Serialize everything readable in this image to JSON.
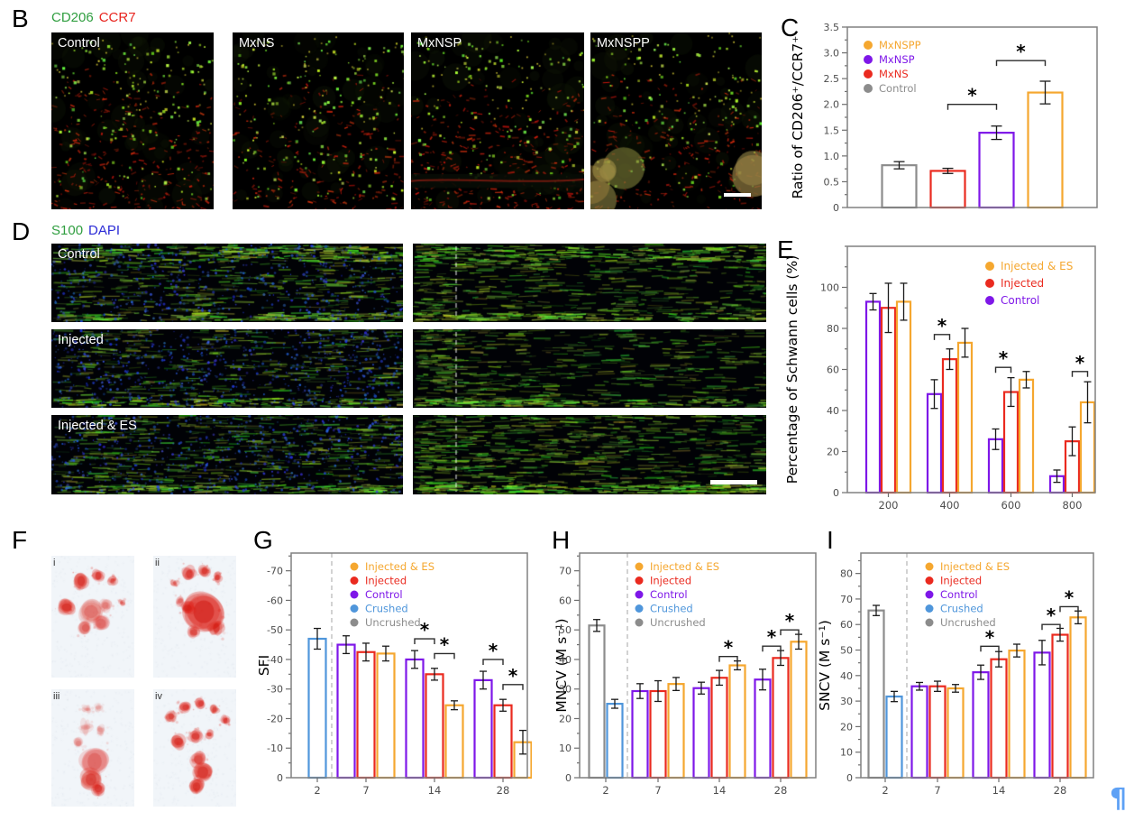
{
  "colors": {
    "orange": "#F5A72F",
    "red": "#EA2A1F",
    "purple": "#7E17E8",
    "blue": "#4F96DB",
    "gray": "#8C8C8C",
    "marker_green": "#2F9E3F",
    "marker_red": "#E8251F",
    "marker_blue": "#2B2BD6",
    "pilcrow_blue": "#5EA1F5"
  },
  "icons": {
    "pilcrow": "¶"
  },
  "panels": {
    "b": {
      "letter": "B",
      "markers": {
        "first": "CD206",
        "second": "CCR7"
      },
      "images": [
        {
          "label": "Control"
        },
        {
          "label": "MxNS"
        },
        {
          "label": "MxNSP"
        },
        {
          "label": "MxNSPP"
        }
      ]
    },
    "c": {
      "letter": "C"
    },
    "d": {
      "letter": "D",
      "markers": {
        "first": "S100",
        "second": "DAPI"
      },
      "rows": [
        {
          "label": "Control"
        },
        {
          "label": "Injected"
        },
        {
          "label": "Injected & ES"
        }
      ]
    },
    "e": {
      "letter": "E"
    },
    "f": {
      "letter": "F",
      "prints": [
        {
          "label": "i"
        },
        {
          "label": "ii"
        },
        {
          "label": "iii"
        },
        {
          "label": "iv"
        }
      ]
    },
    "g": {
      "letter": "G"
    },
    "h": {
      "letter": "H"
    },
    "i": {
      "letter": "I"
    }
  },
  "chart_data": [
    {
      "id": "c",
      "type": "bar",
      "ylabel": "Ratio of CD206⁺/CCR7⁺",
      "ylim": [
        0,
        3.5
      ],
      "ytick_major": 0.5,
      "ytick_minor": 0.25,
      "ytick_label_max": 3.5,
      "ytick_format": "decimal1",
      "negative_axis": false,
      "show_xlabels": false,
      "groups": [
        {
          "label": "",
          "bars": [
            {
              "series": "Control",
              "value": 0.82,
              "err": 0.07,
              "color": "#8C8C8C"
            }
          ]
        },
        {
          "label": "",
          "bars": [
            {
              "series": "MxNS",
              "value": 0.71,
              "err": 0.05,
              "color": "#EA2A1F"
            }
          ]
        },
        {
          "label": "",
          "bars": [
            {
              "series": "MxNSP",
              "value": 1.45,
              "err": 0.13,
              "color": "#7E17E8"
            }
          ]
        },
        {
          "label": "",
          "bars": [
            {
              "series": "MxNSPP",
              "value": 2.23,
              "err": 0.22,
              "color": "#F5A72F"
            }
          ]
        }
      ],
      "legend": [
        {
          "label": "MxNSPP",
          "color": "#F5A72F"
        },
        {
          "label": "MxNSP",
          "color": "#7E17E8"
        },
        {
          "label": "MxNS",
          "color": "#EA2A1F"
        },
        {
          "label": "Control",
          "color": "#8C8C8C"
        }
      ],
      "sig_brackets": [
        {
          "g1": 1,
          "b1": 0,
          "g2": 2,
          "b2": 0,
          "y": 2.0,
          "label": "*"
        },
        {
          "g1": 2,
          "b1": 0,
          "g2": 3,
          "b2": 0,
          "y": 2.85,
          "label": "*"
        }
      ]
    },
    {
      "id": "e",
      "type": "bar",
      "ylabel": "Percentage of Schwann cells (%)",
      "ylim": [
        0,
        120
      ],
      "ytick_major": 20,
      "ytick_minor": 10,
      "ytick_label_max": 100,
      "ytick_format": "int",
      "negative_axis": false,
      "show_xlabels": true,
      "groups": [
        {
          "label": "200",
          "bars": [
            {
              "series": "Control",
              "value": 93,
              "err": 4,
              "color": "#7E17E8"
            },
            {
              "series": "Injected",
              "value": 90,
              "err": 12,
              "color": "#EA2A1F"
            },
            {
              "series": "Injected & ES",
              "value": 93,
              "err": 9,
              "color": "#F5A72F"
            }
          ]
        },
        {
          "label": "400",
          "bars": [
            {
              "series": "Control",
              "value": 48,
              "err": 7,
              "color": "#7E17E8"
            },
            {
              "series": "Injected",
              "value": 65,
              "err": 5,
              "color": "#EA2A1F"
            },
            {
              "series": "Injected & ES",
              "value": 73,
              "err": 7,
              "color": "#F5A72F"
            }
          ]
        },
        {
          "label": "600",
          "bars": [
            {
              "series": "Control",
              "value": 26,
              "err": 5,
              "color": "#7E17E8"
            },
            {
              "series": "Injected",
              "value": 49,
              "err": 7,
              "color": "#EA2A1F"
            },
            {
              "series": "Injected & ES",
              "value": 55,
              "err": 4,
              "color": "#F5A72F"
            }
          ]
        },
        {
          "label": "800",
          "bars": [
            {
              "series": "Control",
              "value": 8,
              "err": 3,
              "color": "#7E17E8"
            },
            {
              "series": "Injected",
              "value": 25,
              "err": 7,
              "color": "#EA2A1F"
            },
            {
              "series": "Injected & ES",
              "value": 44,
              "err": 10,
              "color": "#F5A72F"
            }
          ]
        }
      ],
      "legend": [
        {
          "label": "Injected & ES",
          "color": "#F5A72F"
        },
        {
          "label": "Injected",
          "color": "#EA2A1F"
        },
        {
          "label": "Control",
          "color": "#7E17E8"
        }
      ],
      "sig_brackets": [
        {
          "g1": 1,
          "b1": 0,
          "g2": 1,
          "b2": 1,
          "y": 77,
          "label": "*"
        },
        {
          "g1": 2,
          "b1": 0,
          "g2": 2,
          "b2": 1,
          "y": 61,
          "label": "*"
        },
        {
          "g1": 3,
          "b1": 1,
          "g2": 3,
          "b2": 2,
          "y": 59,
          "label": "*"
        }
      ]
    },
    {
      "id": "g",
      "type": "bar",
      "ylabel": "SFI",
      "ylim": [
        0,
        76
      ],
      "ytick_major": 10,
      "ytick_minor": 5,
      "ytick_label_max": 70,
      "ytick_format": "int",
      "negative_axis": true,
      "show_xlabels": true,
      "divider_after_group": 0,
      "groups": [
        {
          "label": "2",
          "bars": [
            {
              "series": "Crushed",
              "value": -47,
              "err": 3.5,
              "color": "#4F96DB"
            }
          ]
        },
        {
          "label": "7",
          "bars": [
            {
              "series": "Control",
              "value": -45,
              "err": 3,
              "color": "#7E17E8"
            },
            {
              "series": "Injected",
              "value": -42.5,
              "err": 3,
              "color": "#EA2A1F"
            },
            {
              "series": "Injected & ES",
              "value": -42,
              "err": 2.5,
              "color": "#F5A72F"
            }
          ]
        },
        {
          "label": "14",
          "bars": [
            {
              "series": "Control",
              "value": -40,
              "err": 3,
              "color": "#7E17E8"
            },
            {
              "series": "Injected",
              "value": -35,
              "err": 2,
              "color": "#EA2A1F"
            },
            {
              "series": "Injected & ES",
              "value": -24.5,
              "err": 1.5,
              "color": "#F5A72F"
            }
          ]
        },
        {
          "label": "28",
          "bars": [
            {
              "series": "Control",
              "value": -33,
              "err": 3,
              "color": "#7E17E8"
            },
            {
              "series": "Injected",
              "value": -24.5,
              "err": 2,
              "color": "#EA2A1F"
            },
            {
              "series": "Injected & ES",
              "value": -12,
              "err": 4,
              "color": "#F5A72F"
            }
          ]
        }
      ],
      "legend": [
        {
          "label": "Injected & ES",
          "color": "#F5A72F"
        },
        {
          "label": "Injected",
          "color": "#EA2A1F"
        },
        {
          "label": "Control",
          "color": "#7E17E8"
        },
        {
          "label": "Crushed",
          "color": "#4F96DB"
        },
        {
          "label": "Uncrushed",
          "color": "#8C8C8C"
        }
      ],
      "sig_brackets": [
        {
          "g1": 2,
          "b1": 0,
          "g2": 2,
          "b2": 1,
          "y": -47,
          "label": "*"
        },
        {
          "g1": 2,
          "b1": 1,
          "g2": 2,
          "b2": 2,
          "y": -42,
          "label": "*"
        },
        {
          "g1": 3,
          "b1": 0,
          "g2": 3,
          "b2": 1,
          "y": -40,
          "label": "*"
        },
        {
          "g1": 3,
          "b1": 1,
          "g2": 3,
          "b2": 2,
          "y": -31.5,
          "label": "*"
        }
      ]
    },
    {
      "id": "h",
      "type": "bar",
      "ylabel": "MNCV (M s⁻¹)",
      "ylim": [
        0,
        76
      ],
      "ytick_major": 10,
      "ytick_minor": 5,
      "ytick_label_max": 70,
      "ytick_format": "int",
      "negative_axis": false,
      "show_xlabels": true,
      "divider_after_group": 0,
      "groups": [
        {
          "label": "2",
          "bars": [
            {
              "series": "Uncrushed",
              "value": 51.5,
              "err": 2,
              "color": "#8C8C8C"
            },
            {
              "series": "Crushed",
              "value": 25,
              "err": 1.5,
              "color": "#4F96DB"
            }
          ]
        },
        {
          "label": "7",
          "bars": [
            {
              "series": "Control",
              "value": 29.3,
              "err": 2.5,
              "color": "#7E17E8"
            },
            {
              "series": "Injected",
              "value": 29.3,
              "err": 3.5,
              "color": "#EA2A1F"
            },
            {
              "series": "Injected & ES",
              "value": 31.7,
              "err": 2.2,
              "color": "#F5A72F"
            }
          ]
        },
        {
          "label": "14",
          "bars": [
            {
              "series": "Control",
              "value": 30.3,
              "err": 2,
              "color": "#7E17E8"
            },
            {
              "series": "Injected",
              "value": 33.8,
              "err": 2.5,
              "color": "#EA2A1F"
            },
            {
              "series": "Injected & ES",
              "value": 38,
              "err": 1.5,
              "color": "#F5A72F"
            }
          ]
        },
        {
          "label": "28",
          "bars": [
            {
              "series": "Control",
              "value": 33.2,
              "err": 3.5,
              "color": "#7E17E8"
            },
            {
              "series": "Injected",
              "value": 40.5,
              "err": 2.5,
              "color": "#EA2A1F"
            },
            {
              "series": "Injected & ES",
              "value": 46,
              "err": 2.5,
              "color": "#F5A72F"
            }
          ]
        }
      ],
      "legend": [
        {
          "label": "Injected & ES",
          "color": "#F5A72F"
        },
        {
          "label": "Injected",
          "color": "#EA2A1F"
        },
        {
          "label": "Control",
          "color": "#7E17E8"
        },
        {
          "label": "Crushed",
          "color": "#4F96DB"
        },
        {
          "label": "Uncrushed",
          "color": "#8C8C8C"
        }
      ],
      "sig_brackets": [
        {
          "g1": 2,
          "b1": 1,
          "g2": 2,
          "b2": 2,
          "y": 41,
          "label": "*"
        },
        {
          "g1": 3,
          "b1": 0,
          "g2": 3,
          "b2": 1,
          "y": 44.5,
          "label": "*"
        },
        {
          "g1": 3,
          "b1": 1,
          "g2": 3,
          "b2": 2,
          "y": 50,
          "label": "*"
        }
      ]
    },
    {
      "id": "i",
      "type": "bar",
      "ylabel": "SNCV (M s⁻¹)",
      "ylim": [
        0,
        88
      ],
      "ytick_major": 10,
      "ytick_minor": 5,
      "ytick_label_max": 80,
      "ytick_format": "int",
      "negative_axis": false,
      "show_xlabels": true,
      "divider_after_group": 0,
      "groups": [
        {
          "label": "2",
          "bars": [
            {
              "series": "Uncrushed",
              "value": 65.5,
              "err": 2,
              "color": "#8C8C8C"
            },
            {
              "series": "Crushed",
              "value": 31.8,
              "err": 2,
              "color": "#4F96DB"
            }
          ]
        },
        {
          "label": "7",
          "bars": [
            {
              "series": "Control",
              "value": 35.8,
              "err": 1.5,
              "color": "#7E17E8"
            },
            {
              "series": "Injected",
              "value": 35.8,
              "err": 2,
              "color": "#EA2A1F"
            },
            {
              "series": "Injected & ES",
              "value": 35,
              "err": 1.5,
              "color": "#F5A72F"
            }
          ]
        },
        {
          "label": "14",
          "bars": [
            {
              "series": "Control",
              "value": 41.3,
              "err": 2.8,
              "color": "#7E17E8"
            },
            {
              "series": "Injected",
              "value": 46.4,
              "err": 3,
              "color": "#EA2A1F"
            },
            {
              "series": "Injected & ES",
              "value": 49.8,
              "err": 2.5,
              "color": "#F5A72F"
            }
          ]
        },
        {
          "label": "28",
          "bars": [
            {
              "series": "Control",
              "value": 49,
              "err": 4.8,
              "color": "#7E17E8"
            },
            {
              "series": "Injected",
              "value": 56,
              "err": 2.5,
              "color": "#EA2A1F"
            },
            {
              "series": "Injected & ES",
              "value": 62.8,
              "err": 2.5,
              "color": "#F5A72F"
            }
          ]
        }
      ],
      "legend": [
        {
          "label": "Injected & ES",
          "color": "#F5A72F"
        },
        {
          "label": "Injected",
          "color": "#EA2A1F"
        },
        {
          "label": "Control",
          "color": "#7E17E8"
        },
        {
          "label": "Crushed",
          "color": "#4F96DB"
        },
        {
          "label": "Uncrushed",
          "color": "#8C8C8C"
        }
      ],
      "sig_brackets": [
        {
          "g1": 2,
          "b1": 0,
          "g2": 2,
          "b2": 1,
          "y": 51.5,
          "label": "*"
        },
        {
          "g1": 3,
          "b1": 0,
          "g2": 3,
          "b2": 1,
          "y": 60,
          "label": "*"
        },
        {
          "g1": 3,
          "b1": 1,
          "g2": 3,
          "b2": 2,
          "y": 67,
          "label": "*"
        }
      ]
    }
  ]
}
